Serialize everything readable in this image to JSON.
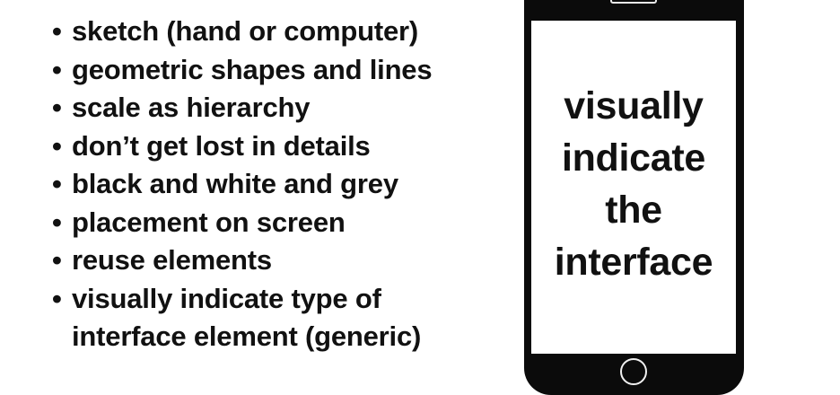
{
  "bullets": [
    "sketch (hand or computer)",
    "geometric shapes and lines",
    "scale as hierarchy",
    "don’t get lost in details",
    "black and white and grey",
    "placement on screen",
    "reuse elements",
    "visually indicate type of",
    "interface element (generic)"
  ],
  "bullet_symbol": "•",
  "phone": {
    "screen_lines": [
      "visually",
      "indicate",
      "the",
      "interface"
    ]
  },
  "colors": {
    "text": "#111111",
    "phone_body": "#0b0b0b",
    "background": "#ffffff"
  }
}
